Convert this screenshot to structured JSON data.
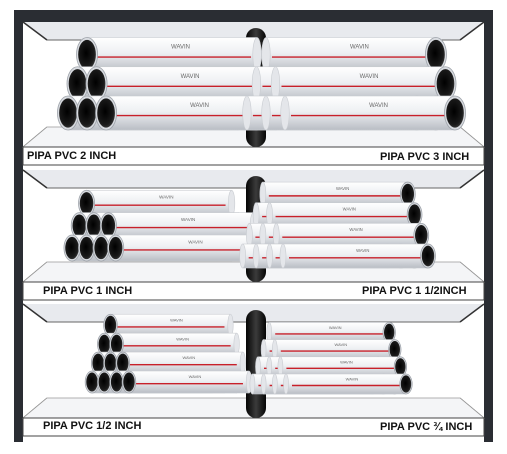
{
  "shelves": [
    {
      "left_label": "PIPA PVC 2 INCH",
      "right_label": "PIPA PVC 3 INCH"
    },
    {
      "left_label": "PIPA PVC 1 INCH",
      "right_label": "PIPA PVC 1 1/2INCH"
    },
    {
      "left_label": "PIPA PVC 1/2 INCH",
      "right_label": "PIPA PVC ¾ INCH"
    }
  ],
  "brand_text": "WAVIN",
  "colors": {
    "frame": "#2a2d33",
    "pipe_body": "#f2f3f5",
    "pipe_stripe": "#c8202a",
    "pipe_interior": "#111111",
    "label_bar": "#ffffff"
  }
}
